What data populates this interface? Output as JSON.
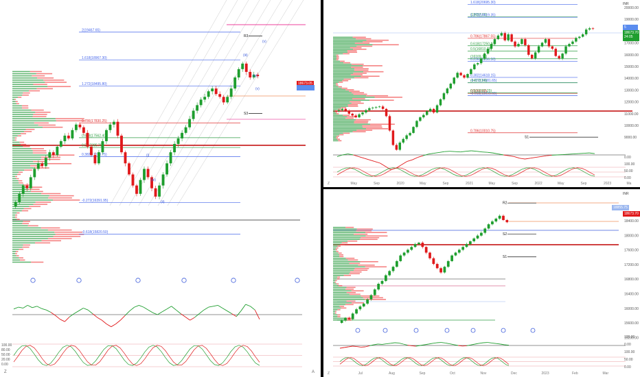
{
  "colors": {
    "up": "#1e9e2e",
    "down": "#e0191b",
    "vp_up": "#2f9e44",
    "vp_down": "#f03e3e",
    "fib_blue": "#4263eb",
    "fib_red": "#e03131",
    "fib_green": "#2f9e44",
    "pivot": "#111111",
    "resistance": "#e6007a",
    "price_tag": "#e0191b",
    "alt_tag": "#5b8def"
  },
  "panels": {
    "left": {
      "price_tag": "18673.05",
      "fib_levels": [
        {
          "label": "2(19467.65)",
          "price": 19467.65,
          "color": "fib_blue"
        },
        {
          "label": "1.618(18967.30)",
          "price": 18967.3,
          "color": "fib_blue"
        },
        {
          "label": "1.272(18495.80)",
          "price": 18495.8,
          "color": "fib_blue"
        },
        {
          "label": "0.786(17830.25)",
          "price": 17830.25,
          "color": "fib_red"
        },
        {
          "label": "0.618(17562.40)",
          "price": 17562.4,
          "color": "fib_green"
        },
        {
          "label": "0.5(17385.70)",
          "price": 17385.7,
          "color": "fib_green"
        },
        {
          "label": "0.382(17220.75)",
          "price": 17220.75,
          "color": "fib_blue"
        },
        {
          "label": "-0.272(16391.95)",
          "price": 16391.95,
          "color": "fib_blue"
        },
        {
          "label": "-0.618(15820.50)",
          "price": 15820.5,
          "color": "fib_blue"
        }
      ],
      "pivot_labels": [
        {
          "label": "R3",
          "price": 19400
        },
        {
          "label": "S3",
          "price": 18000
        }
      ],
      "wave_labels": [
        "(i)",
        "(ii)",
        "(iii)",
        "(iv)",
        "(v)",
        "(v)",
        "(iv)"
      ],
      "oscillator_levels": [
        "100.00",
        "80.00",
        "50.00",
        "20.00",
        "0.00"
      ],
      "zoom_mark": "Z",
      "auto_mark": "A"
    },
    "top_right": {
      "unit": "INR",
      "price_tag": "18673.70",
      "price_tag_sub": "24:05",
      "alt_tag": "5",
      "y_ticks": [
        "20000.00",
        "19000.00",
        "18000.00",
        "17000.00",
        "16000.00",
        "15000.00",
        "14000.00",
        "13000.00",
        "12000.00",
        "11000.00",
        "10000.00",
        "9000.00"
      ],
      "x_ticks": [
        "Z",
        "May",
        "Sep",
        "2020",
        "May",
        "Sep",
        "2021",
        "May",
        "Sep",
        "2022",
        "May",
        "Sep",
        "2023",
        "Ma"
      ],
      "fib_levels": [
        {
          "label": "1.618(20695.30)",
          "price": 20695.3,
          "color": "fib_blue"
        },
        {
          "label": "(20815.00)",
          "price": 20815.0,
          "color": "fib_green"
        },
        {
          "label": "(19657.00)",
          "price": 19657.0,
          "color": "fib_green"
        },
        {
          "label": "1.272(19619.35)",
          "price": 19619.35,
          "color": "fib_blue"
        },
        {
          "label": "0.786(17867.55)",
          "price": 17867.55,
          "color": "fib_red"
        },
        {
          "label": "0.618(17250.10)",
          "price": 17250.1,
          "color": "fib_green"
        },
        {
          "label": "0.5(16810.75)",
          "price": 16810.75,
          "color": "fib_green"
        },
        {
          "label": "0.236(15956.50)",
          "price": 15956.5,
          "color": "fib_blue"
        },
        {
          "label": "(16169.75)",
          "price": 16169.75,
          "color": "fib_green"
        },
        {
          "label": "0.382(14618.15)",
          "price": 14618.15,
          "color": "fib_blue"
        },
        {
          "label": "-0.272(14181.65)",
          "price": 14181.65,
          "color": "fib_blue"
        },
        {
          "label": "(14173.60)",
          "price": 14173.6,
          "color": "fib_green"
        },
        {
          "label": "-0.618(13095.60)",
          "price": 13095.6,
          "color": "fib_blue"
        },
        {
          "label": "(13292.60)",
          "price": 13292.6,
          "color": "fib_red"
        },
        {
          "label": "0.5(13337.25)",
          "price": 13337.25,
          "color": "fib_green"
        },
        {
          "label": "0.786(10010.75)",
          "price": 10010.75,
          "color": "fib_red"
        }
      ],
      "pivot_labels": [
        {
          "label": "S1",
          "price": 9650
        }
      ],
      "oscillator_ticks": [
        "0.00",
        "100.00",
        "50.00",
        "0.00"
      ]
    },
    "bottom_right": {
      "unit": "INR",
      "price_tag": "18673.70",
      "alt_tag": "18855.75",
      "y_ticks": [
        "18400.00",
        "18000.00",
        "17600.00",
        "17200.00",
        "16800.00",
        "16400.00",
        "16000.00",
        "15600.00",
        "15200.00"
      ],
      "x_ticks": [
        "Z",
        "Jul",
        "Aug",
        "Sep",
        "Oct",
        "Nov",
        "Dec",
        "2023",
        "Feb",
        "Mar"
      ],
      "pivot_labels": [
        {
          "label": "S2",
          "price": 18250
        },
        {
          "label": "S1",
          "price": 17450
        },
        {
          "label": "R2",
          "price": 19350
        }
      ],
      "oscillator_ticks": [
        "100.00",
        "0.00",
        "100.00",
        "50.00",
        "0.00"
      ]
    }
  },
  "chart_data": [
    {
      "type": "candlestick",
      "title": "",
      "ylim": [
        15100,
        19800
      ],
      "close": [
        16400,
        16550,
        16700,
        16650,
        16850,
        17000,
        17100,
        17050,
        17200,
        17300,
        17250,
        17400,
        17500,
        17600,
        17550,
        17700,
        17800,
        17750,
        17650,
        17400,
        17250,
        17100,
        17300,
        17500,
        17700,
        17800,
        17850,
        17600,
        17300,
        17100,
        16900,
        16700,
        16550,
        16800,
        17000,
        16850,
        16650,
        16500,
        16700,
        16900,
        17100,
        17300,
        17450,
        17550,
        17650,
        17750,
        17900,
        18050,
        18150,
        18250,
        18300,
        18400,
        18450,
        18350,
        18300,
        18200,
        18300,
        18450,
        18650,
        18800,
        18900,
        18750,
        18650,
        18700,
        18673
      ],
      "oscillator": [
        62,
        66,
        64,
        70,
        65,
        68,
        63,
        60,
        55,
        48,
        40,
        35,
        45,
        52,
        58,
        64,
        60,
        52,
        44,
        38,
        30,
        24,
        30,
        38,
        48,
        58,
        66,
        70,
        66,
        60,
        54,
        50,
        56,
        62,
        68,
        60,
        52,
        45,
        38,
        44,
        52,
        60,
        66,
        68,
        70,
        64,
        58,
        52,
        46,
        58,
        72,
        68,
        60,
        40
      ]
    },
    {
      "type": "candlestick",
      "title": "",
      "ylim": [
        8800,
        20600
      ],
      "close": [
        11900,
        12000,
        11850,
        11600,
        11450,
        11300,
        11550,
        11700,
        11900,
        12050,
        12100,
        12150,
        12200,
        12000,
        11400,
        10200,
        9000,
        8600,
        9200,
        9500,
        9800,
        10000,
        10500,
        11000,
        11300,
        11500,
        11800,
        12000,
        11700,
        12300,
        12800,
        13300,
        13700,
        14100,
        14600,
        15000,
        14800,
        14600,
        14900,
        15300,
        15700,
        15800,
        16200,
        16600,
        17000,
        17400,
        17800,
        18100,
        18300,
        17700,
        18200,
        17600,
        17200,
        17400,
        17800,
        17300,
        16500,
        16200,
        16700,
        17200,
        17500,
        17800,
        17200,
        17000,
        16400,
        16200,
        16600,
        17200,
        17400,
        17600,
        17900,
        18000,
        18200,
        18600,
        18700,
        18673
      ],
      "oscillator": [
        40,
        50,
        56,
        50,
        40,
        30,
        20,
        10,
        0,
        -20,
        -40,
        -30,
        -10,
        10,
        20,
        35,
        45,
        55,
        60,
        65,
        70,
        72,
        70,
        68,
        72,
        75,
        72,
        68,
        66,
        62,
        56,
        50,
        45,
        40,
        30,
        25,
        30,
        35,
        40,
        45,
        48,
        50,
        52,
        54,
        56,
        58,
        60,
        62,
        58
      ]
    },
    {
      "type": "candlestick",
      "title": "",
      "ylim": [
        15000,
        19500
      ],
      "close": [
        15200,
        15300,
        15250,
        15450,
        15600,
        15700,
        15800,
        15950,
        16100,
        16300,
        16500,
        16600,
        16800,
        16950,
        17100,
        17300,
        17500,
        17600,
        17700,
        17800,
        17900,
        17950,
        17800,
        17600,
        17400,
        17200,
        17050,
        16900,
        17100,
        17300,
        17500,
        17600,
        17700,
        17800,
        17900,
        18000,
        18100,
        18200,
        18300,
        18450,
        18600,
        18700,
        18800,
        18900,
        18750,
        18673
      ],
      "oscillator": [
        30,
        35,
        40,
        45,
        42,
        38,
        40,
        48,
        55,
        60,
        58,
        62,
        66,
        70,
        68,
        60,
        52,
        48,
        45,
        50,
        55,
        60,
        66,
        70,
        72,
        68,
        62,
        56,
        50,
        46,
        48,
        54,
        60,
        66,
        70,
        72,
        68,
        64,
        60,
        55,
        52
      ]
    }
  ]
}
